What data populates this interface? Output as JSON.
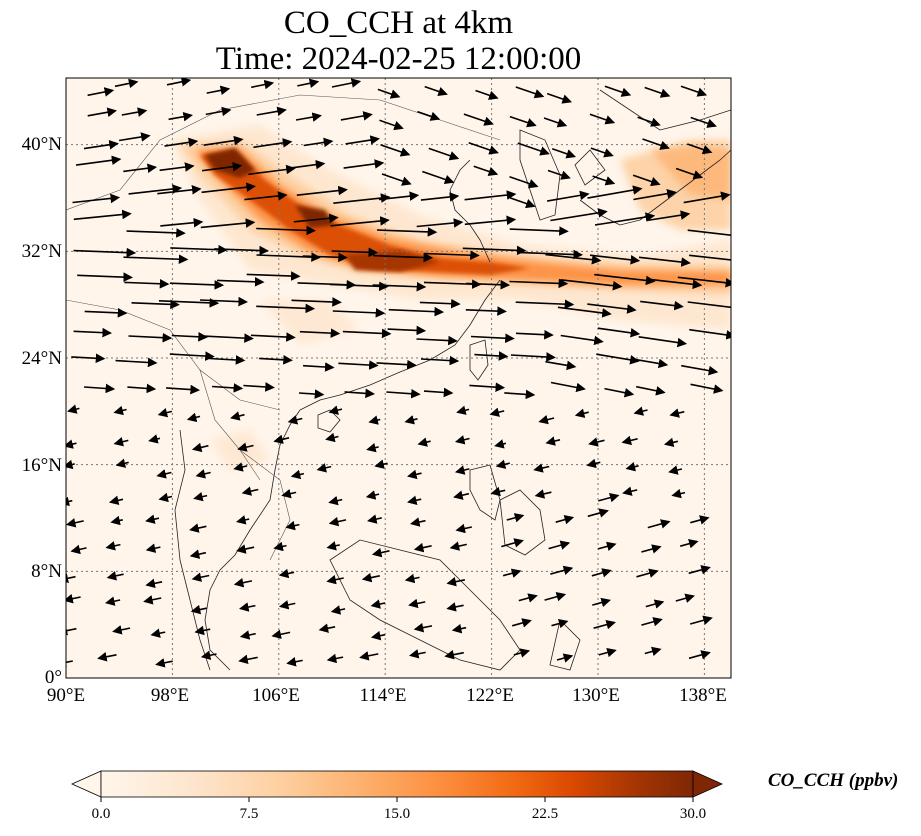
{
  "title": {
    "line1": "CO_CCH at 4km",
    "line2": "Time: 2024-02-25 12:00:00"
  },
  "map": {
    "lon_range": [
      90,
      140
    ],
    "lat_range": [
      0,
      45
    ],
    "lon_ticks": [
      90,
      98,
      106,
      114,
      122,
      130,
      138
    ],
    "lat_ticks": [
      0,
      8,
      16,
      24,
      32,
      40
    ],
    "lon_tick_labels": [
      "90°E",
      "98°E",
      "106°E",
      "114°E",
      "122°E",
      "130°E",
      "138°E"
    ],
    "lat_tick_labels": [
      "0°",
      "8°N",
      "16°N",
      "24°N",
      "32°N",
      "40°N"
    ],
    "gridlines": "dotted",
    "vectors": "wind arrows (black)"
  },
  "colorbar": {
    "label": "CO_CCH (ppbv)",
    "min": 0.0,
    "max": 30.0,
    "extend": "both",
    "ticks": [
      "0.0",
      "7.5",
      "15.0",
      "22.5",
      "30.0"
    ],
    "colormap": [
      "#fff5eb",
      "#fee6ce",
      "#fdd0a2",
      "#fdae6b",
      "#fd8d3c",
      "#f16913",
      "#d94801",
      "#a63603",
      "#7f2704"
    ]
  },
  "plume": {
    "description_color": "#b2182b",
    "peak_ppbv": 30
  }
}
